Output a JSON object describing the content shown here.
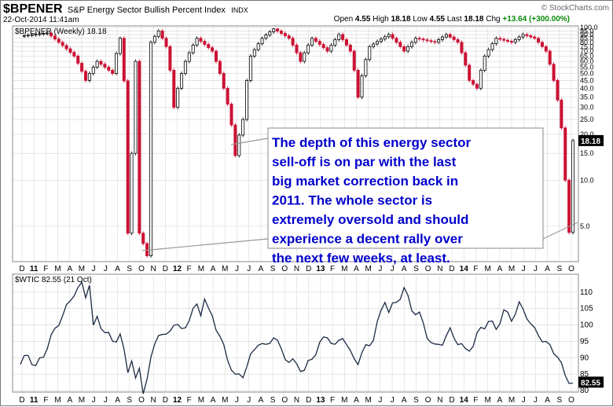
{
  "header": {
    "symbol": "$BPENER",
    "description": "S&P Energy Sector Bullish Percent Index",
    "exchange": "INDX",
    "datetime": "22-Oct-2014 11:41am",
    "watermark": "© StockCharts.com",
    "open_label": "Open",
    "open": "4.55",
    "high_label": "High",
    "high": "18.18",
    "low_label": "Low",
    "low": "4.55",
    "last_label": "Last",
    "last": "18.18",
    "chg_label": "Chg",
    "chg": "+13.64 (+300.00%)"
  },
  "annotation": {
    "text": "The depth of this energy sector sell-off is on par with the last big market correction back in 2011.  The whole sector is extremely oversold and should experience a decent rally over the next few weeks, at least.",
    "color": "#0000cc"
  },
  "x_axis_labels": [
    "D",
    "11",
    "F",
    "M",
    "A",
    "M",
    "J",
    "J",
    "A",
    "S",
    "O",
    "N",
    "D",
    "12",
    "F",
    "M",
    "A",
    "M",
    "J",
    "J",
    "A",
    "S",
    "O",
    "N",
    "D",
    "13",
    "F",
    "M",
    "A",
    "M",
    "J",
    "J",
    "A",
    "S",
    "O",
    "N",
    "D",
    "14",
    "F",
    "M",
    "A",
    "M",
    "J",
    "J",
    "A",
    "S",
    "O"
  ],
  "colors": {
    "up": "#000000",
    "down": "#cc1133",
    "line": "#1a2a44",
    "grid": "#d2d2d2",
    "badge": "#000000"
  },
  "chart_data": [
    {
      "type": "candlestick",
      "series_label": "$BPENER (Weekly) 18.18",
      "x_unit": "weeks from Dec 2010",
      "y_scale": "log",
      "ylim": [
        3,
        100
      ],
      "y_ticks": [
        100.0,
        95.0,
        90.0,
        85.0,
        80.0,
        75.0,
        70.0,
        65.0,
        60.0,
        55.0,
        50.0,
        45.0,
        40.0,
        35.0,
        30.0,
        25.0,
        20.0,
        15.0,
        10.0,
        5.0
      ],
      "y_tick_labels": [
        "100.0",
        "95.0",
        "90.0",
        "85.0",
        "80.0",
        "75.0",
        "70.0",
        "65.0",
        "60.0",
        "55.0",
        "50.0",
        "45.0",
        "40.0",
        "35.0",
        "30.0",
        "25.0",
        "20.0",
        "15.0",
        "10.0",
        "5.0"
      ],
      "last_value_label": "18.18",
      "key_points": [
        {
          "week": 0,
          "value": 88
        },
        {
          "week": 7,
          "value": 92
        },
        {
          "week": 10,
          "value": 80
        },
        {
          "week": 14,
          "value": 65
        },
        {
          "week": 17,
          "value": 45
        },
        {
          "week": 20,
          "value": 60
        },
        {
          "week": 24,
          "value": 50
        },
        {
          "week": 26,
          "value": 85
        },
        {
          "week": 28,
          "value": 4.5
        },
        {
          "week": 29,
          "value": 15
        },
        {
          "week": 30,
          "value": 60
        },
        {
          "week": 31,
          "value": 4.5
        },
        {
          "week": 33,
          "value": 3.2
        },
        {
          "week": 34,
          "value": 80
        },
        {
          "week": 36,
          "value": 95
        },
        {
          "week": 38,
          "value": 75
        },
        {
          "week": 40,
          "value": 30
        },
        {
          "week": 43,
          "value": 60
        },
        {
          "week": 46,
          "value": 85
        },
        {
          "week": 50,
          "value": 70
        },
        {
          "week": 53,
          "value": 40
        },
        {
          "week": 56,
          "value": 14.5
        },
        {
          "week": 58,
          "value": 25
        },
        {
          "week": 60,
          "value": 65
        },
        {
          "week": 63,
          "value": 85
        },
        {
          "week": 66,
          "value": 98
        },
        {
          "week": 70,
          "value": 85
        },
        {
          "week": 73,
          "value": 60
        },
        {
          "week": 76,
          "value": 85
        },
        {
          "week": 80,
          "value": 70
        },
        {
          "week": 83,
          "value": 90
        },
        {
          "week": 86,
          "value": 70
        },
        {
          "week": 88,
          "value": 35
        },
        {
          "week": 91,
          "value": 75
        },
        {
          "week": 96,
          "value": 90
        },
        {
          "week": 100,
          "value": 70
        },
        {
          "week": 103,
          "value": 85
        },
        {
          "week": 108,
          "value": 80
        },
        {
          "week": 111,
          "value": 90
        },
        {
          "week": 114,
          "value": 80
        },
        {
          "week": 117,
          "value": 45
        },
        {
          "week": 119,
          "value": 40
        },
        {
          "week": 121,
          "value": 65
        },
        {
          "week": 124,
          "value": 85
        },
        {
          "week": 128,
          "value": 80
        },
        {
          "week": 131,
          "value": 90
        },
        {
          "week": 134,
          "value": 85
        },
        {
          "week": 137,
          "value": 70
        },
        {
          "week": 139,
          "value": 45
        },
        {
          "week": 141,
          "value": 22
        },
        {
          "week": 142,
          "value": 10
        },
        {
          "week": 143,
          "value": 4.55
        },
        {
          "week": 144,
          "value": 18.18
        }
      ]
    },
    {
      "type": "line",
      "series_label": "$WTIC 82.55 (21 Oct)",
      "x_unit": "weeks from Dec 2010",
      "ylim": [
        80,
        115
      ],
      "y_ticks": [
        110,
        105,
        100,
        95,
        90,
        85,
        80
      ],
      "last_value_label": "82.55",
      "key_points": [
        {
          "week": 0,
          "value": 88
        },
        {
          "week": 2,
          "value": 91
        },
        {
          "week": 4,
          "value": 87
        },
        {
          "week": 6,
          "value": 91
        },
        {
          "week": 8,
          "value": 96
        },
        {
          "week": 10,
          "value": 101
        },
        {
          "week": 12,
          "value": 105
        },
        {
          "week": 14,
          "value": 110
        },
        {
          "week": 16,
          "value": 112
        },
        {
          "week": 17,
          "value": 109
        },
        {
          "week": 18,
          "value": 113
        },
        {
          "week": 19,
          "value": 99
        },
        {
          "week": 20,
          "value": 102
        },
        {
          "week": 22,
          "value": 98
        },
        {
          "week": 24,
          "value": 95
        },
        {
          "week": 26,
          "value": 97
        },
        {
          "week": 28,
          "value": 86
        },
        {
          "week": 29,
          "value": 90
        },
        {
          "week": 30,
          "value": 83
        },
        {
          "week": 31,
          "value": 86
        },
        {
          "week": 32,
          "value": 80
        },
        {
          "week": 33,
          "value": 84
        },
        {
          "week": 35,
          "value": 94
        },
        {
          "week": 36,
          "value": 98
        },
        {
          "week": 38,
          "value": 96
        },
        {
          "week": 40,
          "value": 101
        },
        {
          "week": 42,
          "value": 98
        },
        {
          "week": 44,
          "value": 102
        },
        {
          "week": 46,
          "value": 106
        },
        {
          "week": 47,
          "value": 104
        },
        {
          "week": 48,
          "value": 108
        },
        {
          "week": 49,
          "value": 104
        },
        {
          "week": 50,
          "value": 103
        },
        {
          "week": 52,
          "value": 96
        },
        {
          "week": 54,
          "value": 90
        },
        {
          "week": 56,
          "value": 84
        },
        {
          "week": 58,
          "value": 85
        },
        {
          "week": 60,
          "value": 90
        },
        {
          "week": 62,
          "value": 95
        },
        {
          "week": 64,
          "value": 93
        },
        {
          "week": 66,
          "value": 97
        },
        {
          "week": 68,
          "value": 92
        },
        {
          "week": 70,
          "value": 89
        },
        {
          "week": 72,
          "value": 88
        },
        {
          "week": 74,
          "value": 86
        },
        {
          "week": 76,
          "value": 90
        },
        {
          "week": 78,
          "value": 94
        },
        {
          "week": 80,
          "value": 97
        },
        {
          "week": 82,
          "value": 93
        },
        {
          "week": 84,
          "value": 97
        },
        {
          "week": 86,
          "value": 91
        },
        {
          "week": 88,
          "value": 89
        },
        {
          "week": 90,
          "value": 93
        },
        {
          "week": 92,
          "value": 96
        },
        {
          "week": 94,
          "value": 104
        },
        {
          "week": 95,
          "value": 108
        },
        {
          "week": 96,
          "value": 104
        },
        {
          "week": 98,
          "value": 107
        },
        {
          "week": 100,
          "value": 111
        },
        {
          "week": 102,
          "value": 105
        },
        {
          "week": 104,
          "value": 103
        },
        {
          "week": 106,
          "value": 97
        },
        {
          "week": 108,
          "value": 93
        },
        {
          "week": 110,
          "value": 95
        },
        {
          "week": 112,
          "value": 98
        },
        {
          "week": 114,
          "value": 95
        },
        {
          "week": 116,
          "value": 92
        },
        {
          "week": 118,
          "value": 94
        },
        {
          "week": 120,
          "value": 99
        },
        {
          "week": 122,
          "value": 101
        },
        {
          "week": 124,
          "value": 99
        },
        {
          "week": 126,
          "value": 104
        },
        {
          "week": 128,
          "value": 102
        },
        {
          "week": 130,
          "value": 106
        },
        {
          "week": 132,
          "value": 103
        },
        {
          "week": 134,
          "value": 98
        },
        {
          "week": 136,
          "value": 96
        },
        {
          "week": 138,
          "value": 93
        },
        {
          "week": 140,
          "value": 91
        },
        {
          "week": 142,
          "value": 84
        },
        {
          "week": 144,
          "value": 82.55
        }
      ]
    }
  ]
}
